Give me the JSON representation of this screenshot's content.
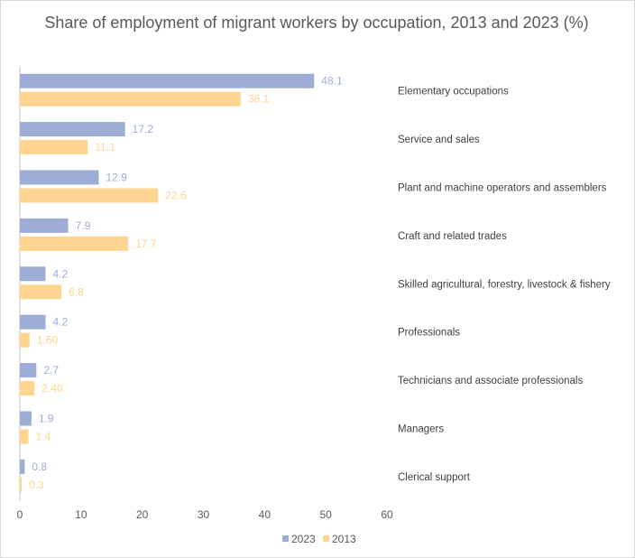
{
  "chart_data": {
    "type": "bar",
    "orientation": "horizontal",
    "title": "Share of employment of migrant workers by occupation, 2013 and 2023 (%)",
    "categories": [
      "Elementary occupations",
      "Service and sales",
      "Plant and machine operators and assemblers",
      "Craft and related trades",
      "Skilled agricultural, forestry, livestock & fishery",
      "Professionals",
      "Technicians and associate professionals",
      "Managers",
      "Clerical support"
    ],
    "series": [
      {
        "name": "2023",
        "color": "#9dadd5",
        "values": [
          48.1,
          17.2,
          12.9,
          7.9,
          4.2,
          4.2,
          2.7,
          1.9,
          0.8
        ],
        "labels": [
          "48.1",
          "17.2",
          "12.9",
          "7.9",
          "4.2",
          "4.2",
          "2.7",
          "1.9",
          "0.8"
        ]
      },
      {
        "name": "2013",
        "color": "#ffd591",
        "values": [
          36.1,
          11.1,
          22.6,
          17.7,
          6.8,
          1.6,
          2.4,
          1.4,
          0.3
        ],
        "labels": [
          "36.1",
          "11.1",
          "22.6",
          "17.7",
          "6.8",
          "1.60",
          "2.40",
          "1.4",
          "0.3"
        ]
      }
    ],
    "xlim": [
      0,
      60
    ],
    "xticks": [
      "0",
      "10",
      "20",
      "30",
      "40",
      "50",
      "60"
    ],
    "grid": false,
    "legend": "bottom"
  }
}
